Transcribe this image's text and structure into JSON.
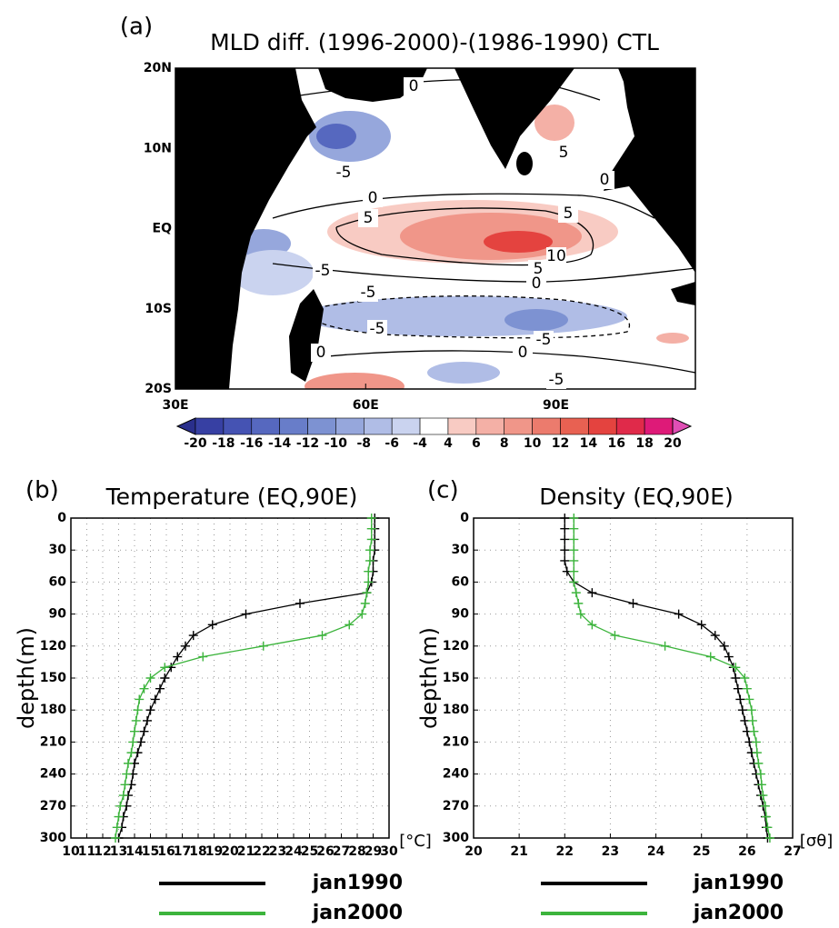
{
  "chart_data": [
    {
      "type": "contour",
      "panel": "(a)",
      "title": "MLD diff. (1996-2000)-(1986-1990) CTL",
      "xlim": [
        30,
        112
      ],
      "ylim": [
        -20,
        20
      ],
      "xticks": [
        {
          "value": 30,
          "label": "30E"
        },
        {
          "value": 60,
          "label": "60E"
        },
        {
          "value": 90,
          "label": "90E"
        }
      ],
      "yticks": [
        {
          "value": 20,
          "label": "20N"
        },
        {
          "value": 10,
          "label": "10N"
        },
        {
          "value": 0,
          "label": "EQ"
        },
        {
          "value": -10,
          "label": "10S"
        },
        {
          "value": -20,
          "label": "20S"
        }
      ],
      "contour_labels": [
        0,
        5,
        -5,
        0,
        0,
        5,
        5,
        10,
        5,
        0,
        -5,
        -5,
        -5,
        -5,
        0,
        0,
        -5
      ],
      "colorbar": {
        "levels": [
          -20,
          -18,
          -16,
          -14,
          -12,
          -10,
          -8,
          -6,
          -4,
          4,
          6,
          8,
          10,
          12,
          14,
          16,
          18,
          20
        ],
        "colors": [
          "#2a2f8c",
          "#3740a3",
          "#4553b3",
          "#5668bf",
          "#687dc9",
          "#7d92d2",
          "#96a7dc",
          "#b0bde6",
          "#cad3ef",
          "#ffffff",
          "#f8cbc3",
          "#f4b0a6",
          "#f09689",
          "#ec7b6d",
          "#e86152",
          "#e4433f",
          "#e02a4a",
          "#de1a78",
          "#e04fb5"
        ]
      }
    },
    {
      "type": "line",
      "panel": "(b)",
      "title": "Temperature (EQ,90E)",
      "y_label": "depth(m)",
      "x_unit": "[°C]",
      "y": [
        0,
        10,
        20,
        30,
        40,
        50,
        60,
        70,
        80,
        90,
        100,
        110,
        120,
        130,
        140,
        150,
        160,
        170,
        180,
        190,
        200,
        210,
        220,
        230,
        240,
        250,
        260,
        270,
        280,
        290,
        300
      ],
      "xlim": [
        10,
        30
      ],
      "xticks": [
        10,
        11,
        12,
        13,
        14,
        15,
        16,
        17,
        18,
        19,
        20,
        21,
        22,
        23,
        24,
        25,
        26,
        27,
        28,
        29,
        30
      ],
      "ylim": [
        0,
        300
      ],
      "yticks": [
        0,
        30,
        60,
        90,
        120,
        150,
        180,
        210,
        240,
        270,
        300
      ],
      "y_inverted": true,
      "grid": true,
      "marker": "+",
      "series": [
        {
          "name": "jan1990",
          "color": "#000000",
          "values": [
            29.1,
            29.1,
            29.1,
            29.1,
            29.0,
            29.0,
            28.9,
            28.6,
            24.4,
            21.0,
            18.9,
            17.7,
            17.2,
            16.7,
            16.3,
            15.9,
            15.6,
            15.3,
            15.0,
            14.8,
            14.6,
            14.4,
            14.2,
            14.0,
            13.9,
            13.8,
            13.6,
            13.5,
            13.3,
            13.2,
            13.0
          ]
        },
        {
          "name": "jan2000",
          "color": "#3cb43c",
          "values": [
            28.9,
            28.9,
            28.9,
            28.8,
            28.8,
            28.7,
            28.7,
            28.6,
            28.5,
            28.3,
            27.5,
            25.8,
            22.1,
            18.3,
            15.9,
            15.0,
            14.6,
            14.3,
            14.2,
            14.1,
            14.0,
            13.9,
            13.8,
            13.6,
            13.5,
            13.4,
            13.3,
            13.1,
            13.0,
            12.9,
            12.8
          ]
        }
      ]
    },
    {
      "type": "line",
      "panel": "(c)",
      "title": "Density (EQ,90E)",
      "y_label": "depth(m)",
      "x_unit": "[σθ]",
      "y": [
        0,
        10,
        20,
        30,
        40,
        50,
        60,
        70,
        80,
        90,
        100,
        110,
        120,
        130,
        140,
        150,
        160,
        170,
        180,
        190,
        200,
        210,
        220,
        230,
        240,
        250,
        260,
        270,
        280,
        290,
        300
      ],
      "xlim": [
        20,
        27
      ],
      "xticks": [
        20,
        21,
        22,
        23,
        24,
        25,
        26,
        27
      ],
      "ylim": [
        0,
        300
      ],
      "yticks": [
        0,
        30,
        60,
        90,
        120,
        150,
        180,
        210,
        240,
        270,
        300
      ],
      "y_inverted": true,
      "grid": true,
      "marker": "+",
      "series": [
        {
          "name": "jan1990",
          "color": "#000000",
          "values": [
            22.0,
            22.0,
            22.0,
            22.0,
            22.0,
            22.05,
            22.2,
            22.6,
            23.5,
            24.5,
            25.0,
            25.3,
            25.5,
            25.6,
            25.7,
            25.75,
            25.8,
            25.85,
            25.9,
            25.95,
            26.0,
            26.05,
            26.1,
            26.15,
            26.2,
            26.25,
            26.3,
            26.35,
            26.4,
            26.42,
            26.45
          ]
        },
        {
          "name": "jan2000",
          "color": "#3cb43c",
          "values": [
            22.2,
            22.2,
            22.2,
            22.2,
            22.2,
            22.2,
            22.2,
            22.25,
            22.3,
            22.35,
            22.6,
            23.1,
            24.2,
            25.2,
            25.75,
            25.95,
            26.0,
            26.05,
            26.1,
            26.12,
            26.15,
            26.2,
            26.22,
            26.25,
            26.3,
            26.32,
            26.35,
            26.4,
            26.42,
            26.45,
            26.5
          ]
        }
      ]
    }
  ]
}
